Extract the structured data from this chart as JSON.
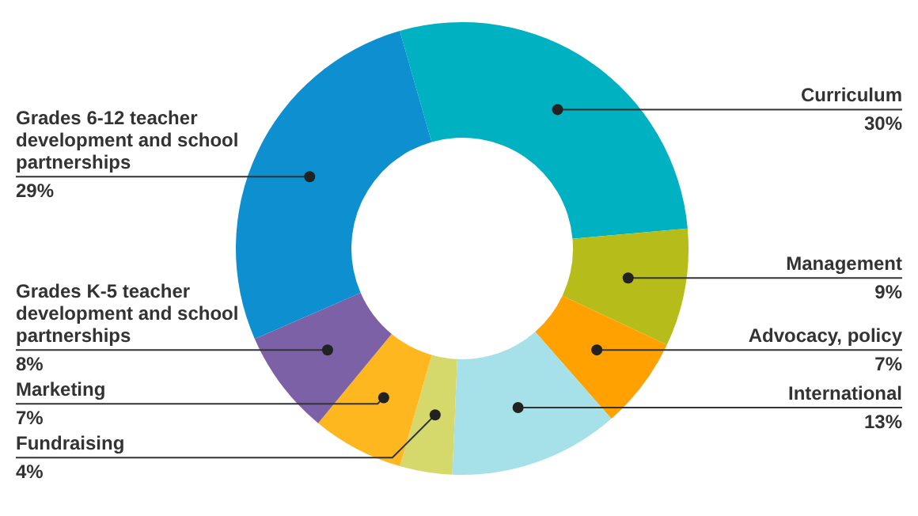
{
  "chart_data": {
    "type": "donut",
    "categories": [
      "Curriculum",
      "Management",
      "Advocacy, policy",
      "International",
      "Fundraising",
      "Marketing",
      "Grades K-5 teacher development and school partnerships",
      "Grades 6-12 teacher development and school partnerships"
    ],
    "values": [
      30,
      9,
      7,
      13,
      4,
      7,
      8,
      29
    ],
    "value_labels": [
      "30%",
      "9%",
      "7%",
      "13%",
      "4%",
      "7%",
      "8%",
      "29%"
    ],
    "colors": [
      "#00b1c1",
      "#b6bd1a",
      "#ffa100",
      "#a6e1ea",
      "#d5d96b",
      "#ffb71f",
      "#7c61a7",
      "#0e8fcf"
    ],
    "legend": false
  }
}
